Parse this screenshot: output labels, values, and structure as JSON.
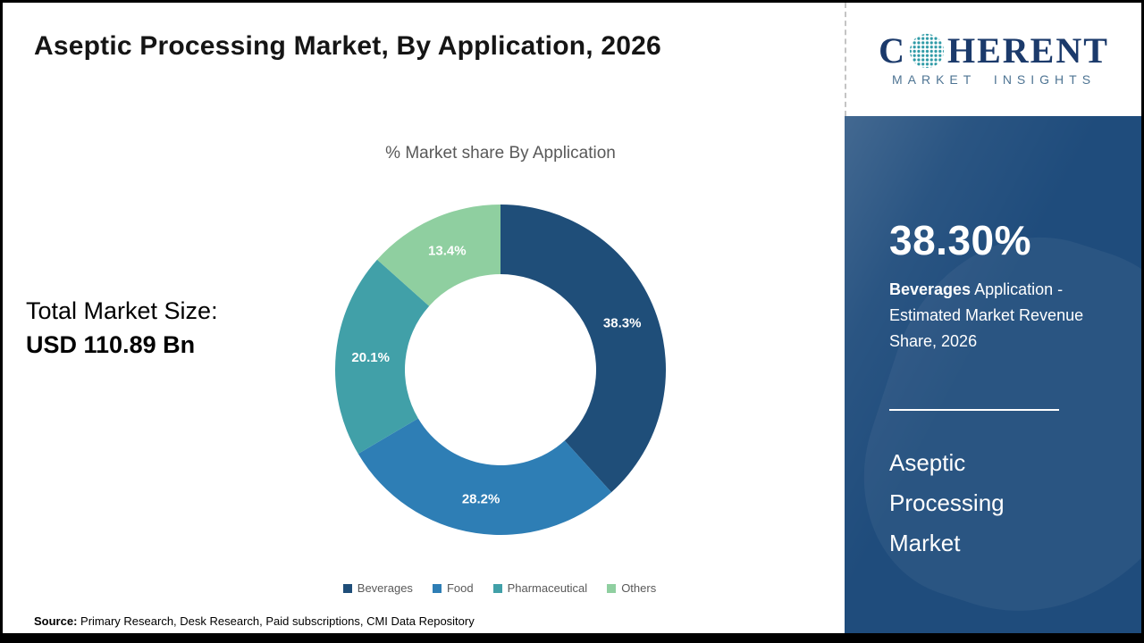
{
  "header": {
    "title": "Aseptic Processing Market, By Application, 2026"
  },
  "logo": {
    "brand_prefix": "C",
    "brand_suffix": "HERENT",
    "tagline": "MARKET INSIGHTS",
    "brand_color": "#1b3a6b",
    "tagline_color": "#4e7493",
    "globe_dot_color": "#2e9aa6"
  },
  "chart_data": {
    "type": "pie",
    "subtype": "donut",
    "title": "% Market share By Application",
    "categories": [
      "Beverages",
      "Food",
      "Pharmaceutical",
      "Others"
    ],
    "values": [
      38.3,
      28.2,
      20.1,
      13.4
    ],
    "labels": [
      "38.3%",
      "28.2%",
      "20.1%",
      "13.4%"
    ],
    "colors": [
      "#1f4e79",
      "#2e7eb5",
      "#41a0a8",
      "#8fcfa0"
    ],
    "legend_position": "bottom",
    "start_angle_deg": 0,
    "direction": "clockwise"
  },
  "total_market": {
    "label": "Total Market Size:",
    "value": "USD 110.89 Bn"
  },
  "sidebar": {
    "background_color": "#1f4c7c",
    "highlight_value": "38.30%",
    "highlight_bold": "Beverages",
    "highlight_rest": " Application - Estimated Market Revenue Share, 2026",
    "market_name": "Aseptic Processing Market"
  },
  "source": {
    "label": "Source:",
    "text": " Primary Research, Desk Research, Paid subscriptions, CMI Data Repository"
  }
}
